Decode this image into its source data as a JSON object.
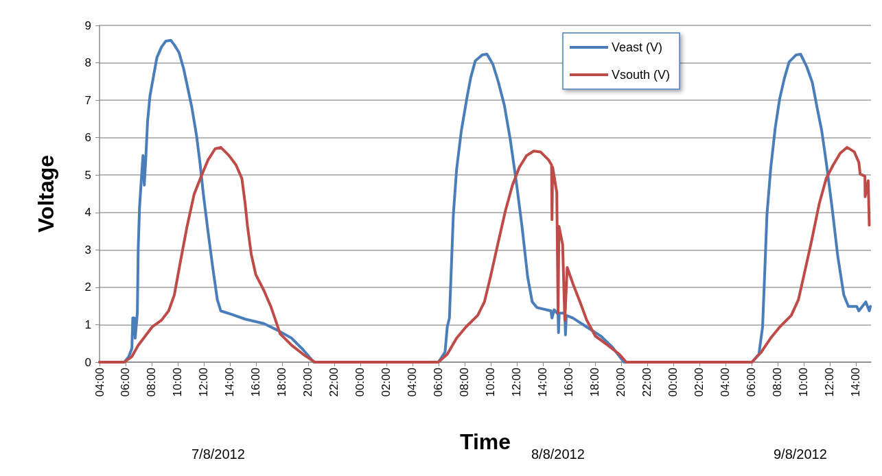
{
  "chart_data": {
    "type": "line",
    "xlabel": "Time",
    "ylabel": "Voltage",
    "annotations": [
      "7/8/2012",
      "8/8/2012",
      "9/8/2012"
    ],
    "xlim": [
      "2012-08-07T04:00",
      "2012-08-09T15:10"
    ],
    "xticks": [
      {
        "value": "2012-08-07T04:00",
        "label": "04:00"
      },
      {
        "value": "2012-08-07T06:00",
        "label": "06:00"
      },
      {
        "value": "2012-08-07T08:00",
        "label": "08:00"
      },
      {
        "value": "2012-08-07T10:00",
        "label": "10:00"
      },
      {
        "value": "2012-08-07T12:00",
        "label": "12:00"
      },
      {
        "value": "2012-08-07T14:00",
        "label": "14:00"
      },
      {
        "value": "2012-08-07T16:00",
        "label": "16:00"
      },
      {
        "value": "2012-08-07T18:00",
        "label": "18:00"
      },
      {
        "value": "2012-08-07T20:00",
        "label": "20:00"
      },
      {
        "value": "2012-08-07T22:00",
        "label": "22:00"
      },
      {
        "value": "2012-08-08T00:00",
        "label": "00:00"
      },
      {
        "value": "2012-08-08T02:00",
        "label": "02:00"
      },
      {
        "value": "2012-08-08T04:00",
        "label": "04:00"
      },
      {
        "value": "2012-08-08T06:00",
        "label": "06:00"
      },
      {
        "value": "2012-08-08T08:00",
        "label": "08:00"
      },
      {
        "value": "2012-08-08T10:00",
        "label": "10:00"
      },
      {
        "value": "2012-08-08T12:00",
        "label": "12:00"
      },
      {
        "value": "2012-08-08T14:00",
        "label": "14:00"
      },
      {
        "value": "2012-08-08T16:00",
        "label": "16:00"
      },
      {
        "value": "2012-08-08T18:00",
        "label": "18:00"
      },
      {
        "value": "2012-08-08T20:00",
        "label": "20:00"
      },
      {
        "value": "2012-08-08T22:00",
        "label": "22:00"
      },
      {
        "value": "2012-08-09T00:00",
        "label": "00:00"
      },
      {
        "value": "2012-08-09T02:00",
        "label": "02:00"
      },
      {
        "value": "2012-08-09T04:00",
        "label": "04:00"
      },
      {
        "value": "2012-08-09T06:00",
        "label": "06:00"
      },
      {
        "value": "2012-08-09T08:00",
        "label": "08:00"
      },
      {
        "value": "2012-08-09T10:00",
        "label": "10:00"
      },
      {
        "value": "2012-08-09T12:00",
        "label": "12:00"
      },
      {
        "value": "2012-08-09T14:00",
        "label": "14:00"
      }
    ],
    "ylim": [
      0,
      9
    ],
    "yticks": [
      0,
      1,
      2,
      3,
      4,
      5,
      6,
      7,
      8,
      9
    ],
    "grid": "y",
    "legend": "top right",
    "series": [
      {
        "name": "Veast (V)",
        "color": "#4a7ebb",
        "x": [
          "2012-08-07T04:00",
          "2012-08-07T05:54",
          "2012-08-07T06:15",
          "2012-08-07T06:29",
          "2012-08-07T06:33",
          "2012-08-07T06:40",
          "2012-08-07T06:44",
          "2012-08-07T06:54",
          "2012-08-07T06:58",
          "2012-08-07T07:04",
          "2012-08-07T07:12",
          "2012-08-07T07:20",
          "2012-08-07T07:26",
          "2012-08-07T07:33",
          "2012-08-07T07:41",
          "2012-08-07T07:52",
          "2012-08-07T08:09",
          "2012-08-07T08:24",
          "2012-08-07T08:45",
          "2012-08-07T09:05",
          "2012-08-07T09:28",
          "2012-08-07T09:44",
          "2012-08-07T10:06",
          "2012-08-07T10:27",
          "2012-08-07T10:43",
          "2012-08-07T11:05",
          "2012-08-07T11:26",
          "2012-08-07T11:42",
          "2012-08-07T11:58",
          "2012-08-07T12:19",
          "2012-08-07T12:41",
          "2012-08-07T13:02",
          "2012-08-07T13:18",
          "2012-08-07T14:06",
          "2012-08-07T15:10",
          "2012-08-07T16:36",
          "2012-08-07T17:40",
          "2012-08-07T18:44",
          "2012-08-07T19:37",
          "2012-08-07T20:26",
          "2012-08-08T05:59",
          "2012-08-08T06:30",
          "2012-08-08T06:40",
          "2012-08-08T06:50",
          "2012-08-08T06:58",
          "2012-08-08T07:08",
          "2012-08-08T07:23",
          "2012-08-08T07:45",
          "2012-08-08T08:12",
          "2012-08-08T08:28",
          "2012-08-08T08:49",
          "2012-08-08T09:21",
          "2012-08-08T09:43",
          "2012-08-08T10:10",
          "2012-08-08T10:36",
          "2012-08-08T11:03",
          "2012-08-08T11:30",
          "2012-08-08T11:57",
          "2012-08-08T12:24",
          "2012-08-08T12:50",
          "2012-08-08T13:11",
          "2012-08-08T13:33",
          "2012-08-08T14:37",
          "2012-08-08T14:42",
          "2012-08-08T14:52",
          "2012-08-08T15:10",
          "2012-08-08T15:12",
          "2012-08-08T15:15",
          "2012-08-08T15:41",
          "2012-08-08T15:44",
          "2012-08-08T15:48",
          "2012-08-08T16:18",
          "2012-08-08T17:22",
          "2012-08-08T18:26",
          "2012-08-08T19:20",
          "2012-08-08T20:13",
          "2012-08-09T06:02",
          "2012-08-09T06:34",
          "2012-08-09T06:51",
          "2012-08-09T07:01",
          "2012-08-09T07:11",
          "2012-08-09T07:28",
          "2012-08-09T07:49",
          "2012-08-09T08:10",
          "2012-08-09T08:32",
          "2012-08-09T08:53",
          "2012-08-09T09:25",
          "2012-08-09T09:46",
          "2012-08-09T10:14",
          "2012-08-09T10:40",
          "2012-08-09T11:02",
          "2012-08-09T11:23",
          "2012-08-09T11:44",
          "2012-08-09T12:11",
          "2012-08-09T12:37",
          "2012-08-09T13:05",
          "2012-08-09T13:26",
          "2012-08-09T14:04",
          "2012-08-09T14:14",
          "2012-08-09T14:46",
          "2012-08-09T15:02",
          "2012-08-09T15:07"
        ],
        "values": [
          0,
          0,
          0.15,
          0.37,
          1.18,
          1.18,
          0.64,
          1.31,
          3.02,
          4.12,
          4.85,
          5.52,
          4.73,
          5.46,
          6.43,
          7.11,
          7.66,
          8.14,
          8.42,
          8.58,
          8.6,
          8.48,
          8.27,
          7.84,
          7.41,
          6.8,
          6.07,
          5.34,
          4.48,
          3.5,
          2.53,
          1.67,
          1.37,
          1.28,
          1.15,
          1.03,
          0.85,
          0.64,
          0.33,
          0,
          0,
          0.27,
          0.94,
          1.18,
          2.4,
          3.93,
          5.15,
          6.19,
          7.11,
          7.6,
          8.05,
          8.21,
          8.23,
          7.96,
          7.47,
          6.86,
          5.95,
          4.85,
          3.63,
          2.28,
          1.61,
          1.46,
          1.37,
          1.18,
          1.4,
          1.28,
          0.79,
          1.31,
          1.31,
          0.73,
          1.25,
          1.18,
          0.94,
          0.7,
          0.4,
          0,
          0,
          0.21,
          0.94,
          2.4,
          3.93,
          5.15,
          6.25,
          7.05,
          7.6,
          8.02,
          8.21,
          8.23,
          7.9,
          7.47,
          6.8,
          6.19,
          5.34,
          4.12,
          2.83,
          1.79,
          1.49,
          1.49,
          1.37,
          1.61,
          1.37,
          1.49
        ]
      },
      {
        "name": "Vsouth (V)",
        "color": "#be4b48",
        "x": [
          "2012-08-07T04:00",
          "2012-08-07T05:54",
          "2012-08-07T06:29",
          "2012-08-07T06:58",
          "2012-08-07T07:31",
          "2012-08-07T08:02",
          "2012-08-07T08:45",
          "2012-08-07T09:18",
          "2012-08-07T09:44",
          "2012-08-07T10:11",
          "2012-08-07T10:43",
          "2012-08-07T11:15",
          "2012-08-07T11:48",
          "2012-08-07T12:19",
          "2012-08-07T12:52",
          "2012-08-07T13:18",
          "2012-08-07T13:56",
          "2012-08-07T14:28",
          "2012-08-07T14:55",
          "2012-08-07T15:10",
          "2012-08-07T15:21",
          "2012-08-07T15:38",
          "2012-08-07T15:59",
          "2012-08-07T16:36",
          "2012-08-07T17:08",
          "2012-08-07T17:30",
          "2012-08-07T17:51",
          "2012-08-07T18:44",
          "2012-08-07T19:37",
          "2012-08-07T20:31",
          "2012-08-08T05:59",
          "2012-08-08T06:40",
          "2012-08-08T07:23",
          "2012-08-08T08:06",
          "2012-08-08T09:00",
          "2012-08-08T09:31",
          "2012-08-08T09:59",
          "2012-08-08T10:32",
          "2012-08-08T11:08",
          "2012-08-08T11:40",
          "2012-08-08T12:12",
          "2012-08-08T12:45",
          "2012-08-08T13:18",
          "2012-08-08T13:49",
          "2012-08-08T14:27",
          "2012-08-08T14:40",
          "2012-08-08T14:42",
          "2012-08-08T14:45",
          "2012-08-08T15:04",
          "2012-08-08T15:10",
          "2012-08-08T15:14",
          "2012-08-08T15:31",
          "2012-08-08T15:41",
          "2012-08-08T15:52",
          "2012-08-08T16:18",
          "2012-08-08T16:51",
          "2012-08-08T17:22",
          "2012-08-08T18:01",
          "2012-08-08T18:59",
          "2012-08-08T19:52",
          "2012-08-08T20:24",
          "2012-08-09T06:02",
          "2012-08-09T06:45",
          "2012-08-09T07:28",
          "2012-08-09T08:10",
          "2012-08-09T09:03",
          "2012-08-09T09:36",
          "2012-08-09T10:02",
          "2012-08-09T10:35",
          "2012-08-09T11:12",
          "2012-08-09T11:44",
          "2012-08-09T12:16",
          "2012-08-09T12:48",
          "2012-08-09T13:20",
          "2012-08-09T13:53",
          "2012-08-09T14:14",
          "2012-08-09T14:20",
          "2012-08-09T14:42",
          "2012-08-09T14:43",
          "2012-08-09T14:57",
          "2012-08-09T15:02"
        ],
        "values": [
          0,
          0,
          0.15,
          0.45,
          0.7,
          0.94,
          1.12,
          1.37,
          1.79,
          2.65,
          3.63,
          4.48,
          4.97,
          5.4,
          5.7,
          5.74,
          5.52,
          5.27,
          4.91,
          4.24,
          3.63,
          2.89,
          2.34,
          1.92,
          1.49,
          1.12,
          0.76,
          0.45,
          0.21,
          0,
          0,
          0.21,
          0.64,
          0.94,
          1.25,
          1.61,
          2.28,
          3.14,
          4.05,
          4.73,
          5.21,
          5.52,
          5.64,
          5.62,
          5.4,
          5.27,
          3.81,
          5.21,
          4.54,
          1.31,
          3.63,
          3.14,
          1.12,
          2.53,
          2.1,
          1.61,
          1.12,
          0.7,
          0.45,
          0.21,
          0,
          0,
          0.27,
          0.64,
          0.94,
          1.25,
          1.67,
          2.34,
          3.2,
          4.24,
          4.91,
          5.27,
          5.58,
          5.74,
          5.62,
          5.34,
          5.03,
          4.97,
          4.42,
          4.85,
          3.66
        ]
      }
    ]
  }
}
